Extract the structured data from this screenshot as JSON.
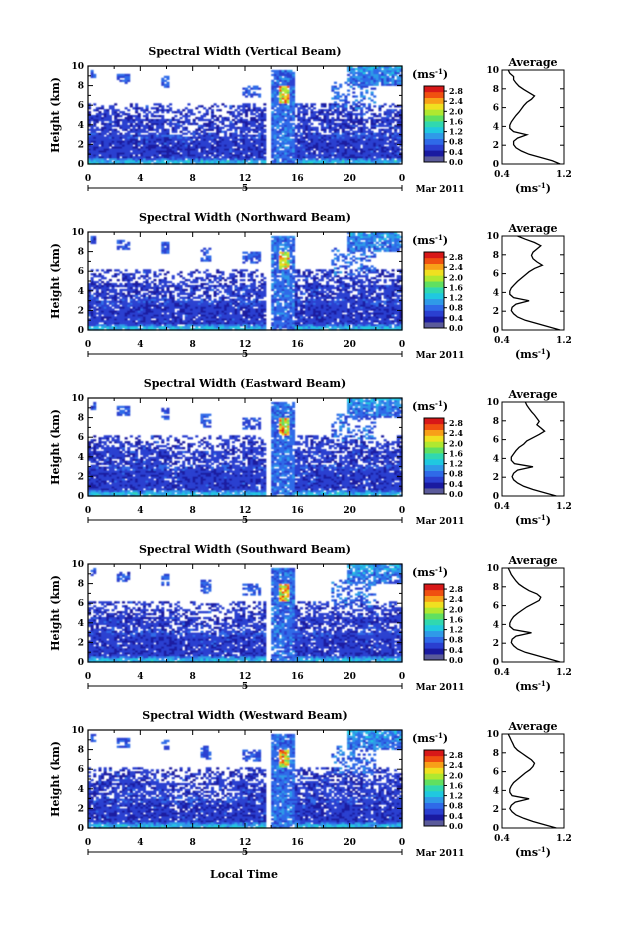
{
  "panels": [
    {
      "title": "Spectral Width (Vertical Beam)",
      "average": [
        1.15,
        1.05,
        0.9,
        0.75,
        0.65,
        0.58,
        0.55,
        0.55,
        0.6,
        0.72,
        0.55,
        0.5,
        0.5,
        0.52,
        0.55,
        0.58,
        0.62,
        0.65,
        0.68,
        0.72,
        0.78,
        0.82,
        0.75,
        0.68,
        0.62,
        0.58,
        0.55,
        0.55,
        0.5,
        0.48
      ]
    },
    {
      "title": "Spectral Width (Northward Beam)",
      "average": [
        1.15,
        1.0,
        0.85,
        0.7,
        0.6,
        0.55,
        0.52,
        0.53,
        0.58,
        0.75,
        0.55,
        0.5,
        0.5,
        0.52,
        0.56,
        0.6,
        0.65,
        0.7,
        0.75,
        0.82,
        0.92,
        0.85,
        0.8,
        0.78,
        0.8,
        0.85,
        0.9,
        0.82,
        0.7,
        0.6
      ]
    },
    {
      "title": "Spectral Width (Eastward Beam)",
      "average": [
        1.1,
        0.95,
        0.8,
        0.68,
        0.6,
        0.55,
        0.53,
        0.55,
        0.6,
        0.8,
        0.56,
        0.52,
        0.52,
        0.55,
        0.58,
        0.62,
        0.68,
        0.72,
        0.8,
        0.88,
        0.95,
        0.9,
        0.85,
        0.88,
        0.85,
        0.82,
        0.78,
        0.75,
        0.72,
        0.7
      ]
    },
    {
      "title": "Spectral Width (Southward Beam)",
      "average": [
        1.15,
        1.0,
        0.85,
        0.7,
        0.6,
        0.55,
        0.52,
        0.53,
        0.58,
        0.78,
        0.55,
        0.5,
        0.5,
        0.52,
        0.55,
        0.6,
        0.66,
        0.72,
        0.8,
        0.88,
        0.9,
        0.85,
        0.75,
        0.68,
        0.62,
        0.58,
        0.55,
        0.52,
        0.5,
        0.48
      ]
    },
    {
      "title": "Spectral Width (Westward Beam)",
      "average": [
        1.1,
        0.95,
        0.8,
        0.68,
        0.58,
        0.53,
        0.5,
        0.52,
        0.57,
        0.75,
        0.53,
        0.5,
        0.5,
        0.52,
        0.55,
        0.6,
        0.65,
        0.7,
        0.76,
        0.8,
        0.82,
        0.78,
        0.72,
        0.66,
        0.6,
        0.56,
        0.54,
        0.52,
        0.5,
        0.48
      ]
    }
  ],
  "labels": {
    "height": "Height (km)",
    "unit": "(ms",
    "unit_exp": "-1",
    "average_title": "Average",
    "month": "Mar 2011",
    "day": "5",
    "local_time": "Local Time",
    "avg_unit": "(ms",
    "avg_unit_exp": "-1"
  },
  "chart_data": {
    "type": "heatmap",
    "panels": [
      "Spectral Width (Vertical Beam)",
      "Spectral Width (Northward Beam)",
      "Spectral Width (Eastward Beam)",
      "Spectral Width (Southward Beam)",
      "Spectral Width (Westward Beam)"
    ],
    "x_ticks": [
      "0",
      "4",
      "8",
      "12",
      "16",
      "20",
      "0"
    ],
    "xlim": [
      0,
      24
    ],
    "y_ticks": [
      "0",
      "2",
      "4",
      "6",
      "8",
      "10"
    ],
    "ylim": [
      0,
      10
    ],
    "xlabel": "Local Time",
    "ylabel": "Height (km)",
    "colorbar_ticks": [
      "0.0",
      "0.4",
      "0.8",
      "1.2",
      "1.6",
      "2.0",
      "2.4",
      "2.8"
    ],
    "colorbar_range": [
      0.0,
      3.0
    ],
    "colorbar_colors": [
      "#5a5a9a",
      "#1a1aa0",
      "#2a3fd0",
      "#2f6ae8",
      "#2f9ae8",
      "#20c8e0",
      "#30d8b0",
      "#60e060",
      "#b0e830",
      "#f0e020",
      "#f8a018",
      "#f05010",
      "#d81818"
    ],
    "average_xlim": [
      0.4,
      1.2
    ],
    "average_x_ticks": [
      "0.4",
      "1.2"
    ],
    "average_y_ticks": [
      "0",
      "2",
      "4",
      "6",
      "8",
      "10"
    ],
    "data_gap_hours": [
      13.6,
      14.1
    ]
  }
}
